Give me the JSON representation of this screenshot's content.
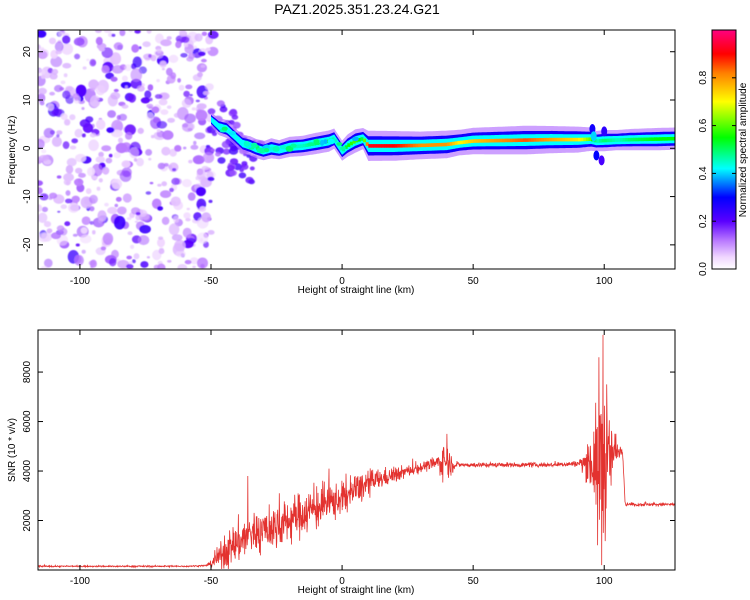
{
  "figure_title": "PAZ1.2025.351.23.24.G21",
  "chart_data": [
    {
      "type": "heatmap",
      "name": "spectrogram",
      "title": "PAZ1.2025.351.23.24.G21",
      "xlabel": "Height of straight line (km)",
      "ylabel": "Frequency (Hz)",
      "xlim": [
        -116,
        127
      ],
      "ylim": [
        -25,
        24.5
      ],
      "xticks": [
        -100,
        -50,
        0,
        50,
        100
      ],
      "yticks": [
        -20,
        -10,
        0,
        10,
        20
      ],
      "xtick_labels": [
        "-100",
        "-50",
        "0",
        "50",
        "100"
      ],
      "ytick_labels": [
        "-20",
        "-10",
        "0",
        "10",
        "20"
      ],
      "colorbar": {
        "label": "Normalized spectral amplitude",
        "range": [
          0,
          1
        ],
        "ticks": [
          0,
          0.2,
          0.4,
          0.6,
          0.8
        ],
        "tick_labels": [
          "0.0",
          "0.2",
          "0.4",
          "0.6",
          "0.8"
        ],
        "colormap": "rainbow (white → violet → blue → cyan → green → yellow → red → magenta)"
      },
      "noise_region_x": [
        -116,
        -50
      ],
      "ridge": {
        "x": [
          -50,
          -47,
          -44,
          -41,
          -38,
          -35,
          -33,
          -30,
          -27,
          -24,
          -20,
          -15,
          -10,
          -5,
          -3,
          0,
          2,
          5,
          8,
          10,
          20,
          30,
          40,
          45,
          50,
          60,
          70,
          80,
          90,
          95,
          97,
          100,
          105,
          110,
          120,
          127
        ],
        "y": [
          6,
          4.5,
          4,
          2.5,
          1,
          0.5,
          0,
          -0.5,
          0,
          -0.3,
          0.3,
          0.5,
          1,
          1.5,
          2,
          -0.5,
          0.5,
          1.5,
          2,
          0.5,
          0.5,
          0.6,
          0.8,
          1.2,
          1.5,
          1.6,
          1.7,
          1.8,
          1.8,
          1.9,
          1.5,
          1.6,
          1.7,
          1.8,
          1.9,
          2.0
        ],
        "amp": [
          0.15,
          0.3,
          0.35,
          0.3,
          0.35,
          0.4,
          0.4,
          0.4,
          0.45,
          0.4,
          0.45,
          0.45,
          0.5,
          0.5,
          0.45,
          0.45,
          0.55,
          0.6,
          0.5,
          0.92,
          0.9,
          0.8,
          0.8,
          0.7,
          0.75,
          0.8,
          0.85,
          0.78,
          0.72,
          0.6,
          0.45,
          0.5,
          0.45,
          0.5,
          0.55,
          0.55
        ]
      }
    },
    {
      "type": "line",
      "name": "snr",
      "xlabel": "Height of straight line (km)",
      "ylabel": "SNR (10 * v/v)",
      "xlim": [
        -116,
        127
      ],
      "ylim": [
        0,
        9700
      ],
      "xticks": [
        -100,
        -50,
        0,
        50,
        100
      ],
      "yticks": [
        2000,
        4000,
        6000,
        8000
      ],
      "xtick_labels": [
        "-100",
        "-50",
        "0",
        "50",
        "100"
      ],
      "ytick_labels": [
        "2000",
        "4000",
        "6000",
        "8000"
      ],
      "color": "#e3322f",
      "envelope": {
        "x": [
          -116,
          -60,
          -52,
          -50,
          -45,
          -40,
          -35,
          -30,
          -25,
          -20,
          -15,
          -10,
          -5,
          0,
          5,
          10,
          15,
          20,
          25,
          30,
          35,
          38,
          39,
          41,
          43,
          45,
          50,
          60,
          70,
          80,
          90,
          94,
          96,
          98,
          99,
          100,
          102,
          104,
          106,
          107,
          108,
          115,
          127
        ],
        "baseline": [
          150,
          150,
          180,
          250,
          700,
          1100,
          1500,
          1600,
          1750,
          2000,
          2300,
          2500,
          2700,
          2900,
          3200,
          3500,
          3700,
          3850,
          4000,
          4150,
          4300,
          4350,
          4450,
          4300,
          4250,
          4250,
          4250,
          4250,
          4250,
          4250,
          4300,
          4350,
          4350,
          4300,
          4250,
          4200,
          4400,
          4800,
          4850,
          4850,
          2650,
          2650,
          2650
        ],
        "noise": [
          30,
          30,
          30,
          120,
          700,
          900,
          900,
          900,
          900,
          900,
          900,
          900,
          850,
          700,
          650,
          550,
          400,
          300,
          250,
          220,
          220,
          600,
          700,
          600,
          150,
          100,
          100,
          90,
          90,
          90,
          120,
          800,
          1800,
          2600,
          3300,
          3000,
          1600,
          900,
          250,
          150,
          70,
          70,
          70
        ]
      },
      "peaks": [
        {
          "x": 99.5,
          "y": 9500
        },
        {
          "x": 99.0,
          "y": 200
        },
        {
          "x": 98.0,
          "y": 8600
        },
        {
          "x": 97.5,
          "y": 1000
        },
        {
          "x": 101.0,
          "y": 7500
        },
        {
          "x": 40.0,
          "y": 5500
        },
        {
          "x": -36.0,
          "y": 3800
        },
        {
          "x": -24.0,
          "y": 3100
        },
        {
          "x": -5.0,
          "y": 4100
        },
        {
          "x": 5.0,
          "y": 3800
        }
      ]
    }
  ]
}
